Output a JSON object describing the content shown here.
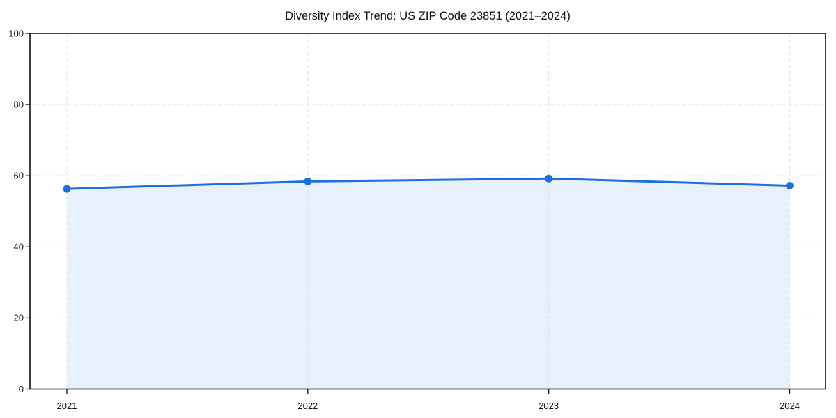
{
  "title": "Diversity Index Trend: US ZIP Code 23851 (2021–2024)",
  "chart_data": {
    "type": "area",
    "title": "Diversity Index Trend: US ZIP Code 23851 (2021–2024)",
    "categories": [
      "2021",
      "2022",
      "2023",
      "2024"
    ],
    "series": [
      {
        "name": "Diversity Index",
        "values": [
          56.3,
          58.4,
          59.2,
          57.2
        ]
      }
    ],
    "xlabel": "",
    "ylabel": "",
    "ylim": [
      0,
      100
    ],
    "yticks": [
      0,
      20,
      40,
      60,
      80,
      100
    ],
    "grid": "dashed",
    "legend": "none",
    "marker": "circle",
    "colors": {
      "line": "#1b70e0",
      "fill": "rgba(27,112,224,0.10)",
      "grid": "#e3e3e3",
      "axis": "#111111",
      "tick_text": "#111111",
      "background": "#ffffff"
    }
  }
}
